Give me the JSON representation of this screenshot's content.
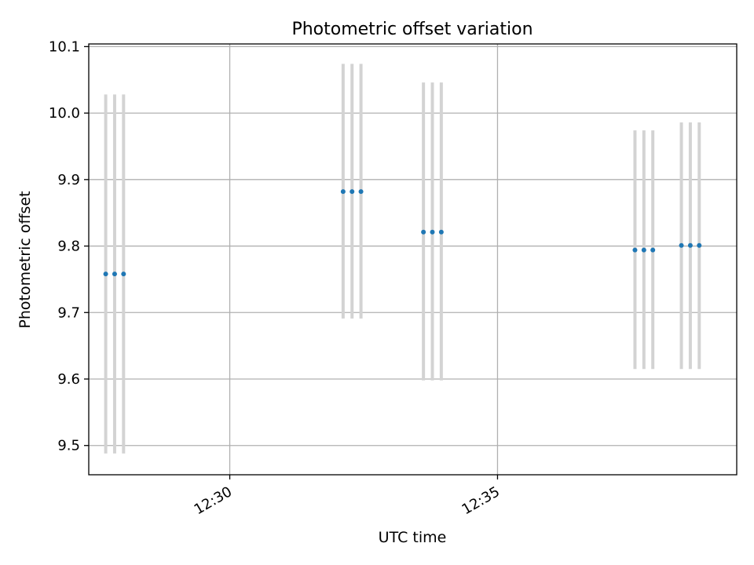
{
  "chart_data": {
    "type": "scatter",
    "title": "Photometric offset variation",
    "xlabel": "UTC time",
    "ylabel": "Photometric offset",
    "xlim": [
      "12:27:22",
      "12:39:28"
    ],
    "ylim": [
      9.456,
      10.104
    ],
    "x_ticks": [
      {
        "time": "12:30:00",
        "label": "12:30"
      },
      {
        "time": "12:35:00",
        "label": "12:35"
      }
    ],
    "y_ticks": [
      {
        "value": 9.5,
        "label": "9.5"
      },
      {
        "value": 9.6,
        "label": "9.6"
      },
      {
        "value": 9.7,
        "label": "9.7"
      },
      {
        "value": 9.8,
        "label": "9.8"
      },
      {
        "value": 9.9,
        "label": "9.9"
      },
      {
        "value": 10.0,
        "label": "10.0"
      },
      {
        "value": 10.1,
        "label": "10.1"
      }
    ],
    "grid": true,
    "series": [
      {
        "marker_color": "#1f77b4",
        "errorbar_color": "#d3d3d3",
        "points": [
          {
            "time": "12:27:41",
            "y": 9.758,
            "ylow": 9.488,
            "yhigh": 10.028
          },
          {
            "time": "12:27:51",
            "y": 9.758,
            "ylow": 9.488,
            "yhigh": 10.028
          },
          {
            "time": "12:28:01",
            "y": 9.758,
            "ylow": 9.488,
            "yhigh": 10.028
          },
          {
            "time": "12:32:07",
            "y": 9.882,
            "ylow": 9.691,
            "yhigh": 10.074
          },
          {
            "time": "12:32:17",
            "y": 9.882,
            "ylow": 9.691,
            "yhigh": 10.074
          },
          {
            "time": "12:32:27",
            "y": 9.882,
            "ylow": 9.691,
            "yhigh": 10.074
          },
          {
            "time": "12:33:37",
            "y": 9.821,
            "ylow": 9.598,
            "yhigh": 10.046
          },
          {
            "time": "12:33:47",
            "y": 9.821,
            "ylow": 9.598,
            "yhigh": 10.046
          },
          {
            "time": "12:33:57",
            "y": 9.821,
            "ylow": 9.598,
            "yhigh": 10.046
          },
          {
            "time": "12:37:34",
            "y": 9.794,
            "ylow": 9.615,
            "yhigh": 9.974
          },
          {
            "time": "12:37:44",
            "y": 9.794,
            "ylow": 9.615,
            "yhigh": 9.974
          },
          {
            "time": "12:37:54",
            "y": 9.794,
            "ylow": 9.615,
            "yhigh": 9.974
          },
          {
            "time": "12:38:26",
            "y": 9.801,
            "ylow": 9.615,
            "yhigh": 9.986
          },
          {
            "time": "12:38:36",
            "y": 9.801,
            "ylow": 9.615,
            "yhigh": 9.986
          },
          {
            "time": "12:38:46",
            "y": 9.801,
            "ylow": 9.615,
            "yhigh": 9.986
          }
        ]
      }
    ]
  }
}
